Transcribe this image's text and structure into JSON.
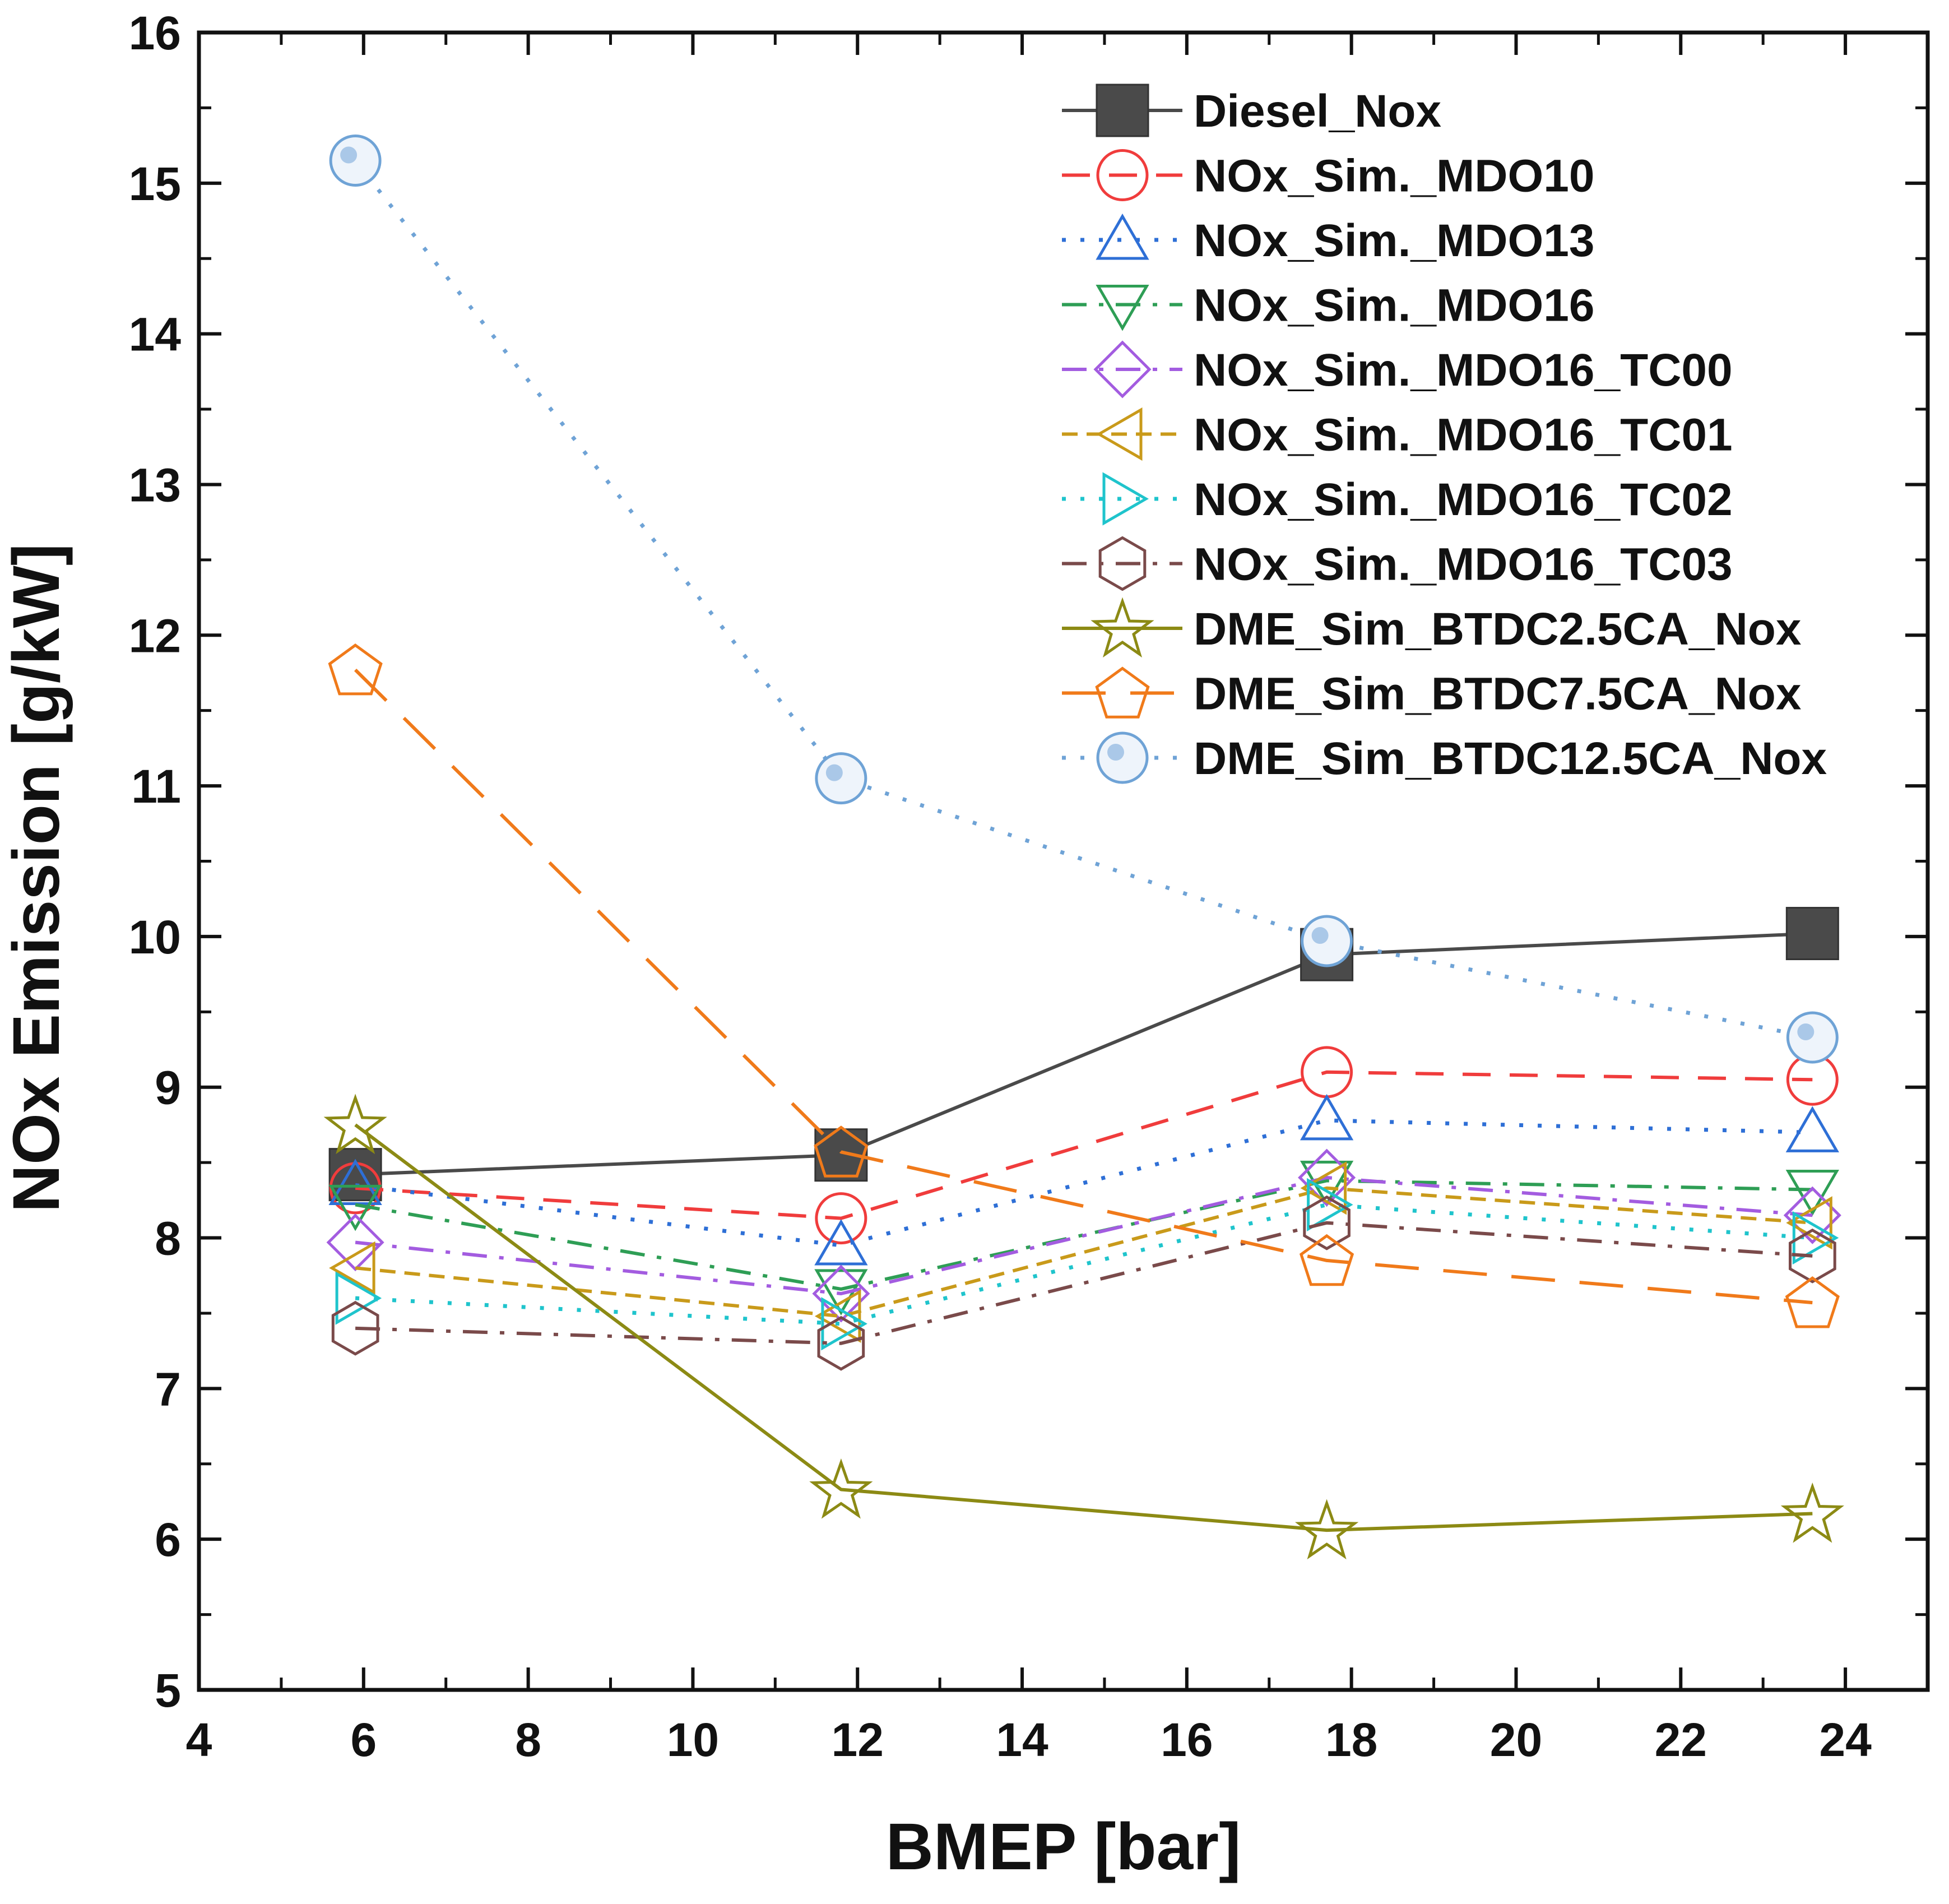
{
  "chart_data": {
    "type": "line",
    "title": "",
    "xlabel": "BMEP [bar]",
    "ylabel": "NOx Emission [g/kW]",
    "xlim": [
      4,
      25
    ],
    "ylim": [
      5,
      16
    ],
    "xticks": [
      4,
      6,
      8,
      10,
      12,
      14,
      16,
      18,
      20,
      22,
      24
    ],
    "yticks": [
      5,
      6,
      7,
      8,
      9,
      10,
      11,
      12,
      13,
      14,
      15,
      16
    ],
    "grid": false,
    "legend_position": "top-right",
    "series": [
      {
        "name": "Diesel_Nox",
        "color": "#4a4a4a",
        "dash": "solid",
        "marker": "square-filled",
        "x": [
          5.9,
          11.8,
          17.7,
          23.6
        ],
        "y": [
          8.42,
          8.55,
          9.88,
          10.02
        ]
      },
      {
        "name": "NOx_Sim._MDO10",
        "color": "#f03c3c",
        "dash": "dash",
        "marker": "circle",
        "x": [
          5.9,
          11.8,
          17.7,
          23.6
        ],
        "y": [
          8.33,
          8.13,
          9.1,
          9.05
        ]
      },
      {
        "name": "NOx_Sim._MDO13",
        "color": "#2e6fd6",
        "dash": "dot",
        "marker": "triangle-up",
        "x": [
          5.9,
          11.8,
          17.7,
          23.6
        ],
        "y": [
          8.35,
          7.95,
          8.78,
          8.7
        ]
      },
      {
        "name": "NOx_Sim._MDO16",
        "color": "#2e9e55",
        "dash": "dashdot",
        "marker": "triangle-down",
        "x": [
          5.9,
          11.8,
          17.7,
          23.6
        ],
        "y": [
          8.22,
          7.66,
          8.38,
          8.32
        ]
      },
      {
        "name": "NOx_Sim._MDO16_TC00",
        "color": "#a35ce0",
        "dash": "dashdot",
        "marker": "diamond",
        "x": [
          5.9,
          11.8,
          17.7,
          23.6
        ],
        "y": [
          7.97,
          7.63,
          8.4,
          8.15
        ]
      },
      {
        "name": "NOx_Sim._MDO16_TC01",
        "color": "#c99a1a",
        "dash": "shortdash",
        "marker": "triangle-left",
        "x": [
          5.9,
          11.8,
          17.7,
          23.6
        ],
        "y": [
          7.8,
          7.48,
          8.33,
          8.1
        ]
      },
      {
        "name": "NOx_Sim._MDO16_TC02",
        "color": "#1fc4cc",
        "dash": "dot",
        "marker": "triangle-right",
        "x": [
          5.9,
          11.8,
          17.7,
          23.6
        ],
        "y": [
          7.6,
          7.43,
          8.22,
          8.0
        ]
      },
      {
        "name": "NOx_Sim._MDO16_TC03",
        "color": "#7a4a4a",
        "dash": "dashdot",
        "marker": "hexagon",
        "x": [
          5.9,
          11.8,
          17.7,
          23.6
        ],
        "y": [
          7.4,
          7.3,
          8.1,
          7.88
        ]
      },
      {
        "name": "DME_Sim_BTDC2.5CA_Nox",
        "color": "#8c8a14",
        "dash": "solid",
        "marker": "star",
        "x": [
          5.9,
          11.8,
          17.7,
          23.6
        ],
        "y": [
          8.75,
          6.33,
          6.06,
          6.17
        ]
      },
      {
        "name": "DME_Sim_BTDC7.5CA_Nox",
        "color": "#f07a1a",
        "dash": "longdash",
        "marker": "pentagon",
        "x": [
          5.9,
          11.8,
          17.7,
          23.6
        ],
        "y": [
          11.77,
          8.57,
          7.85,
          7.57
        ]
      },
      {
        "name": "DME_Sim_BTDC12.5CA_Nox",
        "color": "#6fa3d6",
        "dash": "dot",
        "marker": "circle-dotted",
        "x": [
          5.9,
          11.8,
          17.7,
          23.6
        ],
        "y": [
          15.15,
          11.05,
          9.97,
          9.33
        ]
      }
    ]
  }
}
